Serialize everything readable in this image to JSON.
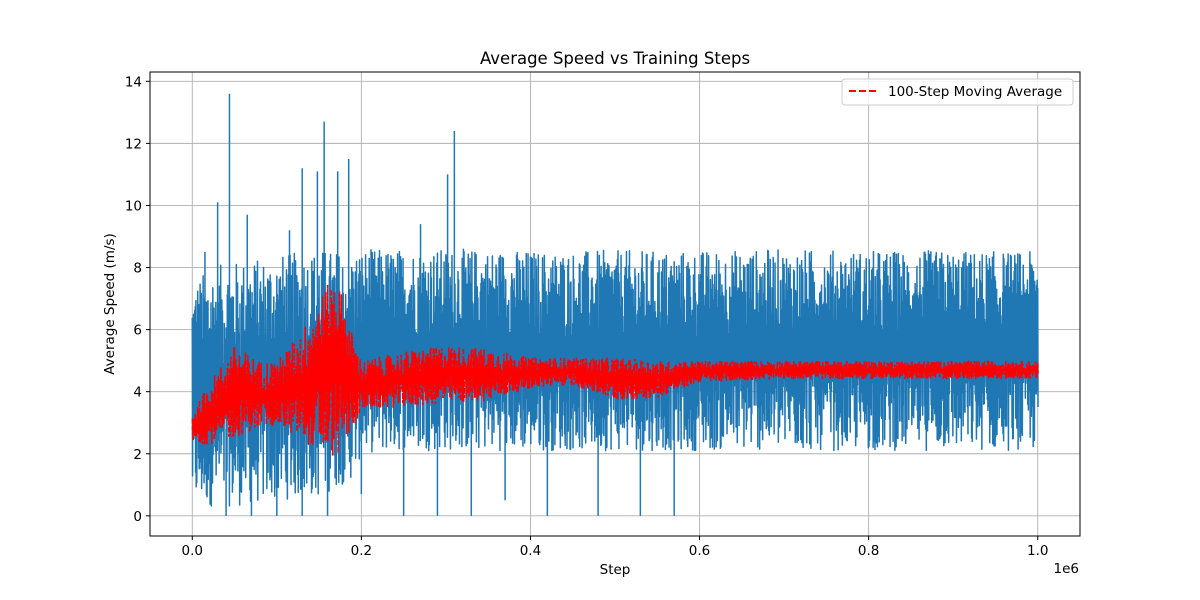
{
  "chart_data": {
    "type": "line",
    "title": "Average Speed vs Training Steps",
    "xlabel": "Step",
    "ylabel": "Average Speed (m/s)",
    "x_offset_label": "1e6",
    "xlim": [
      -0.05,
      1.05
    ],
    "ylim": [
      -0.65,
      14.3
    ],
    "x_ticks": [
      0.0,
      0.2,
      0.4,
      0.6,
      0.8,
      1.0
    ],
    "x_tick_labels": [
      "0.0",
      "0.2",
      "0.4",
      "0.6",
      "0.8",
      "1.0"
    ],
    "y_ticks": [
      0,
      2,
      4,
      6,
      8,
      10,
      12,
      14
    ],
    "y_tick_labels": [
      "0",
      "2",
      "4",
      "6",
      "8",
      "10",
      "12",
      "14"
    ],
    "grid": true,
    "legend_placement": "top-right",
    "x_units_multiplier": 1000000,
    "series": [
      {
        "name": "",
        "color": "#1f77b4",
        "style": "solid",
        "envelope": {
          "x": [
            0.0,
            0.02,
            0.05,
            0.08,
            0.1,
            0.15,
            0.19,
            0.2,
            0.25,
            0.3,
            0.35,
            0.4,
            0.5,
            0.6,
            0.7,
            0.8,
            0.9,
            1.0
          ],
          "upper": [
            7.5,
            8.0,
            8.2,
            8.3,
            8.4,
            8.6,
            8.5,
            8.6,
            8.6,
            8.6,
            8.6,
            8.55,
            8.55,
            8.55,
            8.6,
            8.55,
            8.55,
            8.5
          ],
          "lower": [
            0.3,
            0.3,
            0.3,
            0.4,
            0.5,
            0.6,
            1.2,
            2.0,
            2.1,
            2.1,
            2.1,
            2.1,
            2.1,
            2.1,
            2.1,
            2.1,
            2.1,
            2.1
          ]
        },
        "spikes": [
          {
            "x": 0.015,
            "y": 8.5
          },
          {
            "x": 0.03,
            "y": 10.1
          },
          {
            "x": 0.044,
            "y": 13.6
          },
          {
            "x": 0.065,
            "y": 9.7
          },
          {
            "x": 0.115,
            "y": 9.2
          },
          {
            "x": 0.13,
            "y": 11.2
          },
          {
            "x": 0.148,
            "y": 11.1
          },
          {
            "x": 0.156,
            "y": 12.7
          },
          {
            "x": 0.172,
            "y": 11.1
          },
          {
            "x": 0.185,
            "y": 11.5
          },
          {
            "x": 0.27,
            "y": 9.4
          },
          {
            "x": 0.302,
            "y": 11.0
          },
          {
            "x": 0.31,
            "y": 12.4
          }
        ],
        "dips": [
          {
            "x": 0.04,
            "y": 0
          },
          {
            "x": 0.07,
            "y": 0
          },
          {
            "x": 0.1,
            "y": 0
          },
          {
            "x": 0.13,
            "y": 0
          },
          {
            "x": 0.16,
            "y": 0
          },
          {
            "x": 0.2,
            "y": 0.7
          },
          {
            "x": 0.25,
            "y": 0
          },
          {
            "x": 0.29,
            "y": 0
          },
          {
            "x": 0.33,
            "y": 0
          },
          {
            "x": 0.37,
            "y": 0.5
          },
          {
            "x": 0.42,
            "y": 0
          },
          {
            "x": 0.48,
            "y": 0
          },
          {
            "x": 0.53,
            "y": 0
          },
          {
            "x": 0.57,
            "y": 0
          }
        ]
      },
      {
        "name": "100-Step Moving Average",
        "color": "#ff0000",
        "style": "dashed",
        "envelope": {
          "x": [
            0.0,
            0.02,
            0.05,
            0.08,
            0.1,
            0.13,
            0.15,
            0.17,
            0.19,
            0.2,
            0.25,
            0.3,
            0.35,
            0.4,
            0.45,
            0.5,
            0.55,
            0.6,
            0.7,
            0.8,
            0.9,
            1.0
          ],
          "upper": [
            3.3,
            4.3,
            5.5,
            5.0,
            5.0,
            6.0,
            7.0,
            7.9,
            5.8,
            5.0,
            5.3,
            5.5,
            5.4,
            5.1,
            5.1,
            5.1,
            5.0,
            5.0,
            5.0,
            5.0,
            5.0,
            5.0
          ],
          "lower": [
            2.3,
            2.3,
            2.5,
            2.8,
            2.9,
            2.4,
            2.1,
            1.8,
            2.8,
            3.4,
            3.5,
            3.6,
            3.7,
            4.1,
            4.2,
            3.7,
            3.8,
            4.3,
            4.4,
            4.4,
            4.4,
            4.4
          ]
        }
      }
    ]
  },
  "legend": {
    "entries": [
      "100-Step Moving Average"
    ]
  }
}
